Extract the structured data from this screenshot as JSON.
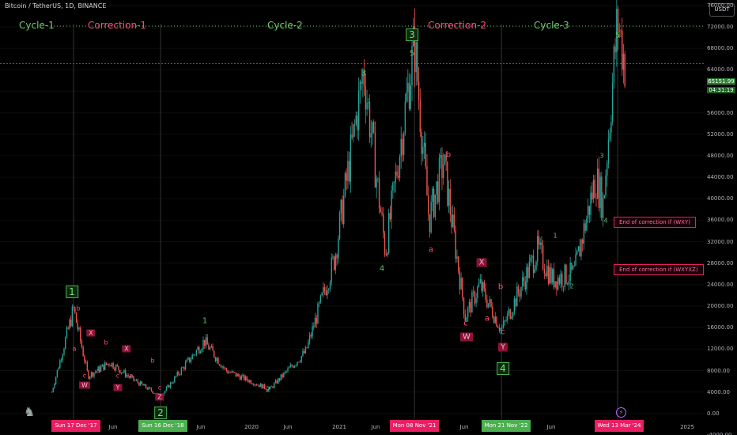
{
  "header": {
    "title": "Bitcoin / TetherUS, 1D, BINANCE",
    "currency": "USDT"
  },
  "price_box": {
    "price": "65151.99",
    "countdown": "04:31:19"
  },
  "axis": {
    "y_ticks": [
      "76000.00",
      "72000.00",
      "68000.00",
      "64000.00",
      "60000.00",
      "56000.00",
      "52000.00",
      "48000.00",
      "44000.00",
      "40000.00",
      "36000.00",
      "32000.00",
      "28000.00",
      "24000.00",
      "20000.00",
      "16000.00",
      "12000.00",
      "8000.00",
      "4000.00",
      "0.00",
      "-4000.00"
    ],
    "x_ticks": [
      "Jun",
      "Jun",
      "2020",
      "Jun",
      "2021",
      "Jun",
      "Jun",
      "Jun",
      "2025"
    ],
    "date_highlights": [
      {
        "label": "Sun 17 Dec '17",
        "color": "#e91e63"
      },
      {
        "label": "Sun 16 Dec '18",
        "color": "#4caf50"
      },
      {
        "label": "Mon 08 Nov '21",
        "color": "#e91e63"
      },
      {
        "label": "Mon 21 Nov '22",
        "color": "#4caf50"
      },
      {
        "label": "Wed 13 Mar '24",
        "color": "#e91e63"
      }
    ]
  },
  "cycles": [
    "Cycle-1",
    "Correction-1",
    "Cycle-2",
    "Correction-2",
    "Cycle-3"
  ],
  "waves": {
    "w1_box": "1",
    "w2_box": "2",
    "w3_box": "3",
    "w4_box": "4",
    "c1_1": "1",
    "c1_2": "2",
    "c1_3": "3",
    "c1_4": "4",
    "c1_5": "5",
    "c2_1": "1",
    "c2_2": "2",
    "c2_3": "3",
    "c2_4": "4",
    "c2_5": "5",
    "corr1": {
      "a1": "a",
      "b1": "b",
      "c1": "c",
      "W": "W",
      "X": "X",
      "a2": "a",
      "b2": "b",
      "c2": "c",
      "Y": "Y",
      "X2": "X",
      "a3": "a",
      "b3": "b",
      "c3": "c",
      "Z": "Z"
    },
    "corr2": {
      "a1": "a",
      "b1": "b",
      "c1": "c",
      "W": "W",
      "X": "X",
      "a2": "a",
      "b2": "b",
      "c2": "c",
      "Y": "Y"
    }
  },
  "annotations": {
    "wxy": "End of correction if (WXY)",
    "wxyxz": "End of correction if (WXYXZ)"
  },
  "chart_data": {
    "type": "line",
    "title": "Bitcoin / TetherUS, 1D, BINANCE",
    "x": [
      "2017-09",
      "2017-12",
      "2018-02",
      "2018-05",
      "2018-08",
      "2018-12",
      "2019-06",
      "2019-09",
      "2020-03",
      "2020-08",
      "2020-12",
      "2021-04",
      "2021-07",
      "2021-11",
      "2022-01",
      "2022-03",
      "2022-06",
      "2022-08",
      "2022-11",
      "2023-04",
      "2023-06",
      "2023-09",
      "2023-12",
      "2024-01",
      "2024-03",
      "2024-04"
    ],
    "series": [
      {
        "values": [
          4000,
          19500,
          7000,
          9500,
          6500,
          3200,
          13500,
          8000,
          4500,
          11500,
          29000,
          64000,
          30000,
          69000,
          36000,
          47000,
          18000,
          24000,
          15500,
          30500,
          25000,
          26000,
          44000,
          39000,
          73500,
          65150
        ]
      }
    ],
    "ylim": [
      -4000,
      77000
    ]
  }
}
